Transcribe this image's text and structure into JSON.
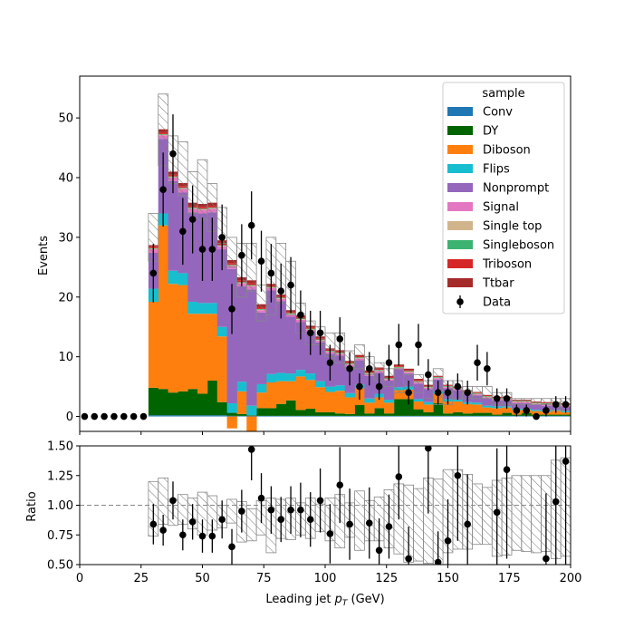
{
  "chart_data": {
    "type": "bar",
    "stack_order": [
      "Ttbar",
      "Triboson",
      "Singleboson",
      "Single top",
      "Signal",
      "Nonprompt",
      "Flips",
      "Diboson",
      "DY",
      "Conv"
    ],
    "bins": {
      "edges": [
        28,
        32,
        36,
        40,
        44,
        48,
        52,
        56,
        60,
        64,
        68,
        72,
        76,
        80,
        84,
        88,
        92,
        96,
        100,
        104,
        108,
        112,
        116,
        120,
        124,
        128,
        132,
        136,
        140,
        144,
        148,
        152,
        156,
        160,
        164,
        168,
        172,
        176,
        180,
        184,
        188,
        192,
        196,
        200
      ]
    },
    "series": [
      {
        "name": "Conv",
        "color": "#1f77b4",
        "values": [
          0.2,
          0.2,
          0.2,
          0.2,
          0.2,
          0.2,
          0.2,
          0.2,
          0.1,
          0.1,
          0.1,
          0.1,
          0.1,
          0.1,
          0.1,
          0.1,
          0.1,
          0.1,
          0.1,
          0.1,
          0.1,
          0.1,
          0.1,
          0.1,
          0.1,
          0.1,
          0.1,
          0.1,
          0.1,
          0.1,
          0.1,
          0.1,
          0.1,
          0.1,
          0.1,
          0.1,
          0.1,
          0.1,
          0.1,
          0.1,
          0.1,
          0.1,
          0.1
        ]
      },
      {
        "name": "DY",
        "color": "#006400",
        "values": [
          4.6,
          4.4,
          3.8,
          4.0,
          4.4,
          3.6,
          5.8,
          2.2,
          0.5,
          0.3,
          0.1,
          1.3,
          1.3,
          2.0,
          2.6,
          1.0,
          1.2,
          0.6,
          0.6,
          0.4,
          0.3,
          1.8,
          0.4,
          1.3,
          0.4,
          2.8,
          2.8,
          1.1,
          0.6,
          2.1,
          0.4,
          0.6,
          0.4,
          0.5,
          0.5,
          0.2,
          0.5,
          0.2,
          0.5,
          0.2,
          0.2,
          0.2,
          0.2
        ]
      },
      {
        "name": "Diboson",
        "color": "#ff7f0e",
        "values": [
          14.4,
          27.4,
          18.2,
          17.8,
          12.6,
          13.4,
          11.2,
          11.0,
          -2.0,
          3.8,
          -2.5,
          2.6,
          4.3,
          3.8,
          3.2,
          5.6,
          4.8,
          4.2,
          3.4,
          3.8,
          2.8,
          2.8,
          1.8,
          1.8,
          1.8,
          1.5,
          1.6,
          1.3,
          1.3,
          1.6,
          2.0,
          1.8,
          1.6,
          1.4,
          0.9,
          1.1,
          0.9,
          0.8,
          0.5,
          0.6,
          0.5,
          0.6,
          0.4
        ]
      },
      {
        "name": "Flips",
        "color": "#17becf",
        "values": [
          2.2,
          2.0,
          2.2,
          2.0,
          2.0,
          1.8,
          1.8,
          1.6,
          1.6,
          1.6,
          1.6,
          1.4,
          1.4,
          1.4,
          1.3,
          1.1,
          1.1,
          1.0,
          0.9,
          0.9,
          0.7,
          0.7,
          0.7,
          0.6,
          0.5,
          0.5,
          0.5,
          0.4,
          0.4,
          0.4,
          0.4,
          0.3,
          0.3,
          0.3,
          0.3,
          0.3,
          0.2,
          0.2,
          0.2,
          0.2,
          0.2,
          0.2,
          0.2
        ]
      },
      {
        "name": "Nonprompt",
        "color": "#9467bd",
        "values": [
          6.0,
          12.5,
          15.0,
          13.5,
          15.0,
          15.0,
          15.2,
          13.0,
          22.5,
          16.0,
          19.5,
          12.0,
          14.0,
          12.0,
          9.5,
          8.0,
          7.0,
          6.5,
          5.5,
          5.0,
          4.5,
          4.0,
          3.8,
          3.5,
          3.2,
          3.0,
          2.2,
          2.6,
          2.2,
          2.0,
          1.8,
          1.6,
          1.4,
          1.2,
          1.2,
          1.0,
          1.0,
          0.9,
          0.9,
          0.8,
          0.8,
          0.7,
          0.7
        ]
      },
      {
        "name": "Signal",
        "color": "#e377c2",
        "values": [
          0.6,
          0.6,
          0.6,
          0.6,
          0.6,
          0.6,
          0.6,
          0.5,
          0.5,
          0.5,
          0.5,
          0.4,
          0.4,
          0.4,
          0.4,
          0.4,
          0.3,
          0.3,
          0.3,
          0.3,
          0.3,
          0.3,
          0.3,
          0.3,
          0.2,
          0.2,
          0.2,
          0.2,
          0.2,
          0.2,
          0.2,
          0.2,
          0.2,
          0.2,
          0.2,
          0.2,
          0.2,
          0.2,
          0.2,
          0.2,
          0.2,
          0.2,
          0.2
        ]
      },
      {
        "name": "Single top",
        "color": "#d2b48c",
        "values": [
          0.1,
          0.1,
          0.1,
          0.1,
          0.1,
          0.1,
          0.1,
          0.1,
          0.1,
          0.1,
          0.1,
          0.1,
          0.1,
          0.1,
          0.1,
          0.1,
          0.1,
          0.1,
          0.1,
          0.1,
          0.1,
          0.1,
          0.1,
          0.1,
          0.1,
          0.1,
          0.1,
          0.1,
          0.1,
          0.1,
          0.1,
          0.1,
          0.1,
          0.1,
          0.1,
          0.1,
          0.1,
          0.1,
          0.1,
          0.1,
          0.1,
          0.1,
          0.1
        ]
      },
      {
        "name": "Singleboson",
        "color": "#3cb371",
        "values": [
          0.1,
          0.1,
          0.1,
          0.1,
          0.1,
          0.1,
          0.1,
          0.1,
          0.1,
          0.1,
          0.1,
          0.1,
          0.1,
          0.1,
          0.1,
          0.1,
          0.1,
          0.1,
          0.1,
          0.1,
          0.1,
          0.1,
          0.1,
          0.1,
          0.1,
          0.1,
          0.1,
          0.1,
          0.1,
          0.1,
          0.1,
          0.1,
          0.1,
          0.1,
          0.1,
          0.1,
          0.1,
          0.1,
          0.1,
          0.1,
          0.1,
          0.1,
          0.1
        ]
      },
      {
        "name": "Triboson",
        "color": "#d62728",
        "values": [
          0.3,
          0.3,
          0.3,
          0.3,
          0.3,
          0.3,
          0.3,
          0.3,
          0.3,
          0.3,
          0.3,
          0.3,
          0.2,
          0.2,
          0.2,
          0.2,
          0.2,
          0.2,
          0.2,
          0.2,
          0.2,
          0.2,
          0.2,
          0.2,
          0.2,
          0.2,
          0.2,
          0.2,
          0.1,
          0.1,
          0.1,
          0.1,
          0.1,
          0.1,
          0.1,
          0.1,
          0.1,
          0.1,
          0.1,
          0.1,
          0.1,
          0.1,
          0.1
        ]
      },
      {
        "name": "Ttbar",
        "color": "#a52a2a",
        "values": [
          0.2,
          0.5,
          0.5,
          0.5,
          0.5,
          0.5,
          0.5,
          0.5,
          0.5,
          0.5,
          0.5,
          0.5,
          0.3,
          0.3,
          0.3,
          0.3,
          0.3,
          0.3,
          0.2,
          0.2,
          0.2,
          0.2,
          0.2,
          0.2,
          0.2,
          0.2,
          0.2,
          0.2,
          0.2,
          0.1,
          0.1,
          0.1,
          0.1,
          0.1,
          0.1,
          0.1,
          0.1,
          0.1,
          0.1,
          0.1,
          0.1,
          0.1,
          0.1
        ]
      }
    ],
    "uncertainty": {
      "total_up": [
        34,
        54,
        47,
        46,
        41,
        43,
        39,
        35,
        30,
        29,
        29,
        22,
        30,
        29,
        26,
        19,
        16,
        15,
        14,
        14,
        11,
        12,
        10,
        9,
        8,
        8,
        7,
        7,
        6,
        8,
        6,
        6,
        5,
        5,
        5,
        4,
        4,
        3,
        3,
        3,
        3,
        3,
        3
      ],
      "total_down": [
        26,
        42,
        39,
        37,
        34,
        33,
        31,
        29,
        25,
        20,
        21,
        16,
        17,
        19,
        17,
        14,
        12,
        12,
        10,
        9,
        8,
        8,
        7,
        6,
        5,
        4,
        4,
        4,
        3,
        2,
        2,
        3,
        3,
        3,
        3,
        2,
        2,
        2,
        2,
        2,
        2,
        1,
        1
      ]
    },
    "data_points": [
      {
        "x": 2,
        "y": 0,
        "err": 0
      },
      {
        "x": 6,
        "y": 0,
        "err": 0
      },
      {
        "x": 10,
        "y": 0,
        "err": 0
      },
      {
        "x": 14,
        "y": 0,
        "err": 0
      },
      {
        "x": 18,
        "y": 0,
        "err": 0
      },
      {
        "x": 22,
        "y": 0,
        "err": 0
      },
      {
        "x": 26,
        "y": 0,
        "err": 0
      },
      {
        "x": 30,
        "y": 24,
        "err": 4.9
      },
      {
        "x": 34,
        "y": 38,
        "err": 6.2
      },
      {
        "x": 38,
        "y": 44,
        "err": 6.6
      },
      {
        "x": 42,
        "y": 31,
        "err": 5.6
      },
      {
        "x": 46,
        "y": 33,
        "err": 5.7
      },
      {
        "x": 50,
        "y": 28,
        "err": 5.3
      },
      {
        "x": 54,
        "y": 28,
        "err": 5.3
      },
      {
        "x": 58,
        "y": 30,
        "err": 5.5
      },
      {
        "x": 62,
        "y": 18,
        "err": 4.2
      },
      {
        "x": 66,
        "y": 27,
        "err": 5.2
      },
      {
        "x": 70,
        "y": 32,
        "err": 5.7
      },
      {
        "x": 74,
        "y": 26,
        "err": 5.1
      },
      {
        "x": 78,
        "y": 24,
        "err": 4.9
      },
      {
        "x": 82,
        "y": 21,
        "err": 4.6
      },
      {
        "x": 86,
        "y": 22,
        "err": 4.7
      },
      {
        "x": 90,
        "y": 17,
        "err": 4.1
      },
      {
        "x": 94,
        "y": 14,
        "err": 3.7
      },
      {
        "x": 98,
        "y": 14,
        "err": 3.7
      },
      {
        "x": 102,
        "y": 9,
        "err": 3.0
      },
      {
        "x": 106,
        "y": 13,
        "err": 3.6
      },
      {
        "x": 110,
        "y": 8,
        "err": 2.8
      },
      {
        "x": 114,
        "y": 5,
        "err": 2.2
      },
      {
        "x": 118,
        "y": 8,
        "err": 2.8
      },
      {
        "x": 122,
        "y": 5,
        "err": 2.2
      },
      {
        "x": 126,
        "y": 9,
        "err": 3.0
      },
      {
        "x": 130,
        "y": 12,
        "err": 3.5
      },
      {
        "x": 134,
        "y": 4,
        "err": 2.0
      },
      {
        "x": 138,
        "y": 12,
        "err": 3.5
      },
      {
        "x": 142,
        "y": 7,
        "err": 2.6
      },
      {
        "x": 146,
        "y": 4,
        "err": 2.0
      },
      {
        "x": 150,
        "y": 4,
        "err": 2.0
      },
      {
        "x": 154,
        "y": 5,
        "err": 2.2
      },
      {
        "x": 158,
        "y": 4,
        "err": 2.0
      },
      {
        "x": 162,
        "y": 9,
        "err": 3.0
      },
      {
        "x": 166,
        "y": 8,
        "err": 2.8
      },
      {
        "x": 170,
        "y": 3,
        "err": 1.7
      },
      {
        "x": 174,
        "y": 3,
        "err": 1.7
      },
      {
        "x": 178,
        "y": 1,
        "err": 1.0
      },
      {
        "x": 182,
        "y": 1,
        "err": 1.0
      },
      {
        "x": 186,
        "y": 0,
        "err": 0.5
      },
      {
        "x": 190,
        "y": 1,
        "err": 1.0
      },
      {
        "x": 194,
        "y": 2,
        "err": 1.4
      },
      {
        "x": 198,
        "y": 2,
        "err": 1.4
      }
    ],
    "ratio_points": [
      {
        "x": 30,
        "y": 0.84,
        "err": 0.17
      },
      {
        "x": 34,
        "y": 0.79,
        "err": 0.13
      },
      {
        "x": 38,
        "y": 1.04,
        "err": 0.16
      },
      {
        "x": 42,
        "y": 0.75,
        "err": 0.13
      },
      {
        "x": 46,
        "y": 0.86,
        "err": 0.15
      },
      {
        "x": 50,
        "y": 0.74,
        "err": 0.14
      },
      {
        "x": 54,
        "y": 0.74,
        "err": 0.14
      },
      {
        "x": 58,
        "y": 0.88,
        "err": 0.16
      },
      {
        "x": 62,
        "y": 0.65,
        "err": 0.15
      },
      {
        "x": 66,
        "y": 0.95,
        "err": 0.18
      },
      {
        "x": 70,
        "y": 1.47,
        "err": 0.26
      },
      {
        "x": 74,
        "y": 1.06,
        "err": 0.21
      },
      {
        "x": 78,
        "y": 0.96,
        "err": 0.2
      },
      {
        "x": 82,
        "y": 0.88,
        "err": 0.19
      },
      {
        "x": 86,
        "y": 0.96,
        "err": 0.2
      },
      {
        "x": 90,
        "y": 0.96,
        "err": 0.23
      },
      {
        "x": 94,
        "y": 0.88,
        "err": 0.23
      },
      {
        "x": 98,
        "y": 1.04,
        "err": 0.27
      },
      {
        "x": 102,
        "y": 0.76,
        "err": 0.25
      },
      {
        "x": 106,
        "y": 1.17,
        "err": 0.32
      },
      {
        "x": 110,
        "y": 0.84,
        "err": 0.3
      },
      {
        "x": 118,
        "y": 0.85,
        "err": 0.3
      },
      {
        "x": 122,
        "y": 0.62,
        "err": 0.27
      },
      {
        "x": 126,
        "y": 0.82,
        "err": 0.27
      },
      {
        "x": 130,
        "y": 1.24,
        "err": 0.36
      },
      {
        "x": 134,
        "y": 0.55,
        "err": 0.27
      },
      {
        "x": 142,
        "y": 1.48,
        "err": 0.55
      },
      {
        "x": 146,
        "y": 0.52,
        "err": 0.26
      },
      {
        "x": 150,
        "y": 0.7,
        "err": 0.35
      },
      {
        "x": 154,
        "y": 1.25,
        "err": 0.55
      },
      {
        "x": 158,
        "y": 0.84,
        "err": 0.42
      },
      {
        "x": 170,
        "y": 0.94,
        "err": 0.54
      },
      {
        "x": 174,
        "y": 1.3,
        "err": 0.75
      },
      {
        "x": 190,
        "y": 0.55,
        "err": 0.55
      },
      {
        "x": 194,
        "y": 1.03,
        "err": 0.73
      },
      {
        "x": 198,
        "y": 1.37,
        "err": 0.97
      }
    ],
    "ratio_unc": [
      [
        0.74,
        1.2
      ],
      [
        0.84,
        1.23
      ],
      [
        0.83,
        1.05
      ],
      [
        0.84,
        1.09
      ],
      [
        0.8,
        1.06
      ],
      [
        0.75,
        1.11
      ],
      [
        0.79,
        1.08
      ],
      [
        0.81,
        1.0
      ],
      [
        0.85,
        1.05
      ],
      [
        0.69,
        1.03
      ],
      [
        0.7,
        0.97
      ],
      [
        0.75,
        1.04
      ],
      [
        0.6,
        1.06
      ],
      [
        0.72,
        1.05
      ],
      [
        0.71,
        1.06
      ],
      [
        0.75,
        1.02
      ],
      [
        0.72,
        1.06
      ],
      [
        0.78,
        1.01
      ],
      [
        0.7,
        1.06
      ],
      [
        0.64,
        1.09
      ],
      [
        0.73,
        1.02
      ],
      [
        0.62,
        1.12
      ],
      [
        0.7,
        1.04
      ],
      [
        0.7,
        1.07
      ],
      [
        0.64,
        1.13
      ],
      [
        0.59,
        1.18
      ],
      [
        0.52,
        1.17
      ],
      [
        0.53,
        1.14
      ],
      [
        0.51,
        1.23
      ],
      [
        0.48,
        1.22
      ],
      [
        0.6,
        1.3
      ],
      [
        0.63,
        1.3
      ],
      [
        0.63,
        1.26
      ],
      [
        0.67,
        1.18
      ],
      [
        0.67,
        1.15
      ],
      [
        0.57,
        1.21
      ],
      [
        0.58,
        1.23
      ],
      [
        0.62,
        1.25
      ],
      [
        0.61,
        1.25
      ],
      [
        0.6,
        1.25
      ],
      [
        0.61,
        1.25
      ],
      [
        0.55,
        1.38
      ],
      [
        0.57,
        1.4
      ]
    ],
    "xlabel": "Leading jet  p_T (GeV)",
    "ylabel": "Events",
    "ratio_ylabel": "Ratio",
    "xlim": [
      0,
      200
    ],
    "ylim": [
      -2.5,
      57
    ],
    "ratio_ylim": [
      0.5,
      1.5
    ],
    "xticks": [
      0,
      25,
      50,
      75,
      100,
      125,
      150,
      175,
      200
    ],
    "yticks": [
      0,
      10,
      20,
      30,
      40,
      50
    ],
    "ratio_yticks": [
      0.5,
      0.75,
      1.0,
      1.25,
      1.5
    ],
    "legend": {
      "title": "sample",
      "position": "top-right",
      "entries": [
        "Conv",
        "DY",
        "Diboson",
        "Flips",
        "Nonprompt",
        "Signal",
        "Single top",
        "Singleboson",
        "Triboson",
        "Ttbar",
        "Data"
      ]
    }
  },
  "labels": {
    "xlabel_prefix": "Leading jet  ",
    "xlabel_var": "p",
    "xlabel_sub": "T",
    "xlabel_suffix": " (GeV)",
    "ylabel": "Events",
    "ratio_ylabel": "Ratio",
    "legend_title": "sample",
    "data_label": "Data"
  }
}
